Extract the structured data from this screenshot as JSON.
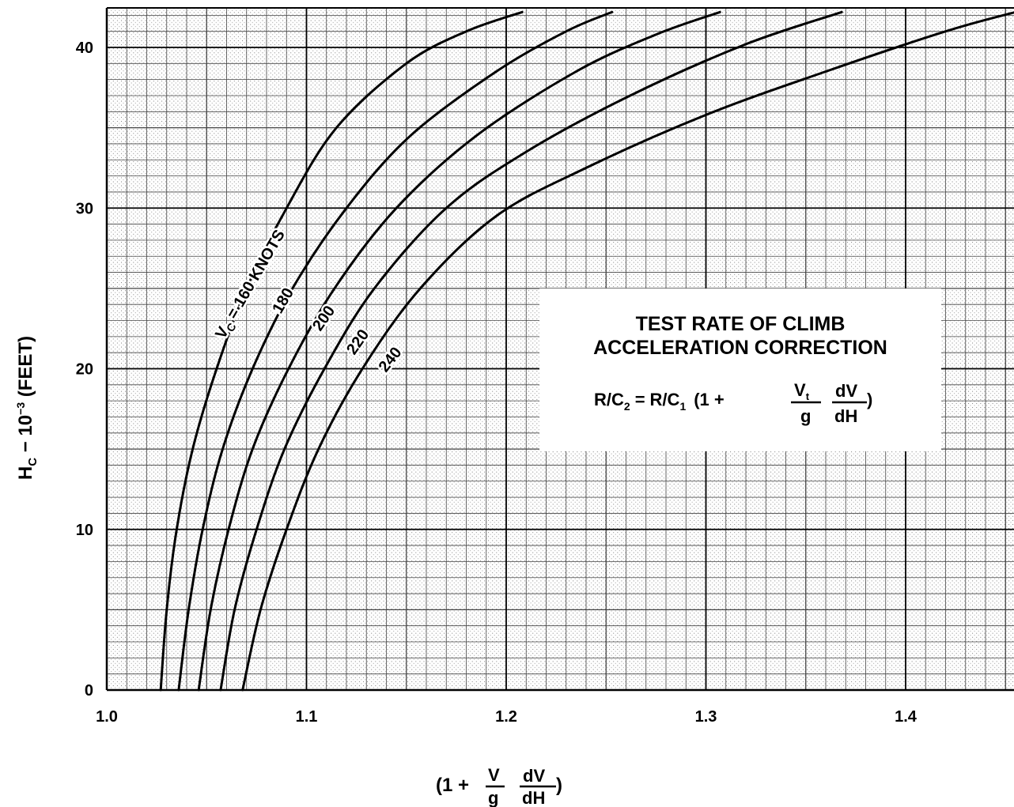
{
  "chart_data": {
    "type": "line",
    "title": "TEST RATE OF CLIMB",
    "subtitle": "ACCELERATION CORRECTION",
    "equation": {
      "lhs": "R/C",
      "lhs_sub": "2",
      "equals": "=",
      "rhs": "R/C",
      "rhs_sub": "1",
      "open": "(1 +",
      "num1": "V",
      "num1_sub": "t",
      "den1": "g",
      "num2": "dV",
      "den2": "dH",
      "close": ")"
    },
    "ylabel": {
      "main": "H",
      "sub": "C",
      "rest": " − 10",
      "exp": "−3",
      "unit": " (FEET)"
    },
    "xlabel": {
      "open": "(1 +",
      "num1": "V",
      "den1": "g",
      "num2": "dV",
      "den2": "dH",
      "close": ")"
    },
    "xlim": [
      1.0,
      1.455
    ],
    "ylim": [
      0,
      42.5
    ],
    "x_ticks": [
      "1.0",
      "1.1",
      "1.2",
      "1.3",
      "1.4"
    ],
    "y_ticks": [
      "0",
      "10",
      "20",
      "30",
      "40"
    ],
    "grid": true,
    "series": [
      {
        "name": "V_C = 160 KNOTS",
        "label_prefix": "V",
        "label_sub": "C",
        "label_rest": " = 160 KNOTS",
        "points": [
          [
            1.027,
            0
          ],
          [
            1.03,
            5
          ],
          [
            1.035,
            10
          ],
          [
            1.043,
            15
          ],
          [
            1.055,
            20
          ],
          [
            1.07,
            25
          ],
          [
            1.09,
            30
          ],
          [
            1.115,
            35
          ],
          [
            1.15,
            39
          ],
          [
            1.18,
            41
          ],
          [
            1.208,
            42.2
          ]
        ]
      },
      {
        "name": "180",
        "label": "180",
        "points": [
          [
            1.036,
            0
          ],
          [
            1.041,
            5
          ],
          [
            1.048,
            10
          ],
          [
            1.058,
            15
          ],
          [
            1.073,
            20
          ],
          [
            1.093,
            25
          ],
          [
            1.12,
            30
          ],
          [
            1.152,
            34.5
          ],
          [
            1.195,
            38.5
          ],
          [
            1.23,
            41
          ],
          [
            1.253,
            42.2
          ]
        ]
      },
      {
        "name": "200",
        "label": "200",
        "points": [
          [
            1.046,
            0
          ],
          [
            1.052,
            5
          ],
          [
            1.061,
            10
          ],
          [
            1.073,
            15
          ],
          [
            1.091,
            20
          ],
          [
            1.114,
            25
          ],
          [
            1.145,
            30
          ],
          [
            1.185,
            34.5
          ],
          [
            1.235,
            38.5
          ],
          [
            1.275,
            40.8
          ],
          [
            1.307,
            42.2
          ]
        ]
      },
      {
        "name": "220",
        "label": "220",
        "points": [
          [
            1.057,
            0
          ],
          [
            1.064,
            5
          ],
          [
            1.075,
            10
          ],
          [
            1.089,
            15
          ],
          [
            1.109,
            20
          ],
          [
            1.134,
            25
          ],
          [
            1.17,
            30
          ],
          [
            1.21,
            33.5
          ],
          [
            1.262,
            37
          ],
          [
            1.32,
            40.2
          ],
          [
            1.368,
            42.2
          ]
        ]
      },
      {
        "name": "240",
        "label": "240",
        "points": [
          [
            1.068,
            0
          ],
          [
            1.077,
            5
          ],
          [
            1.09,
            10
          ],
          [
            1.106,
            15
          ],
          [
            1.128,
            20
          ],
          [
            1.157,
            25
          ],
          [
            1.195,
            29.5
          ],
          [
            1.24,
            32.5
          ],
          [
            1.3,
            35.8
          ],
          [
            1.36,
            38.5
          ],
          [
            1.42,
            41
          ],
          [
            1.455,
            42.2
          ]
        ]
      }
    ]
  }
}
